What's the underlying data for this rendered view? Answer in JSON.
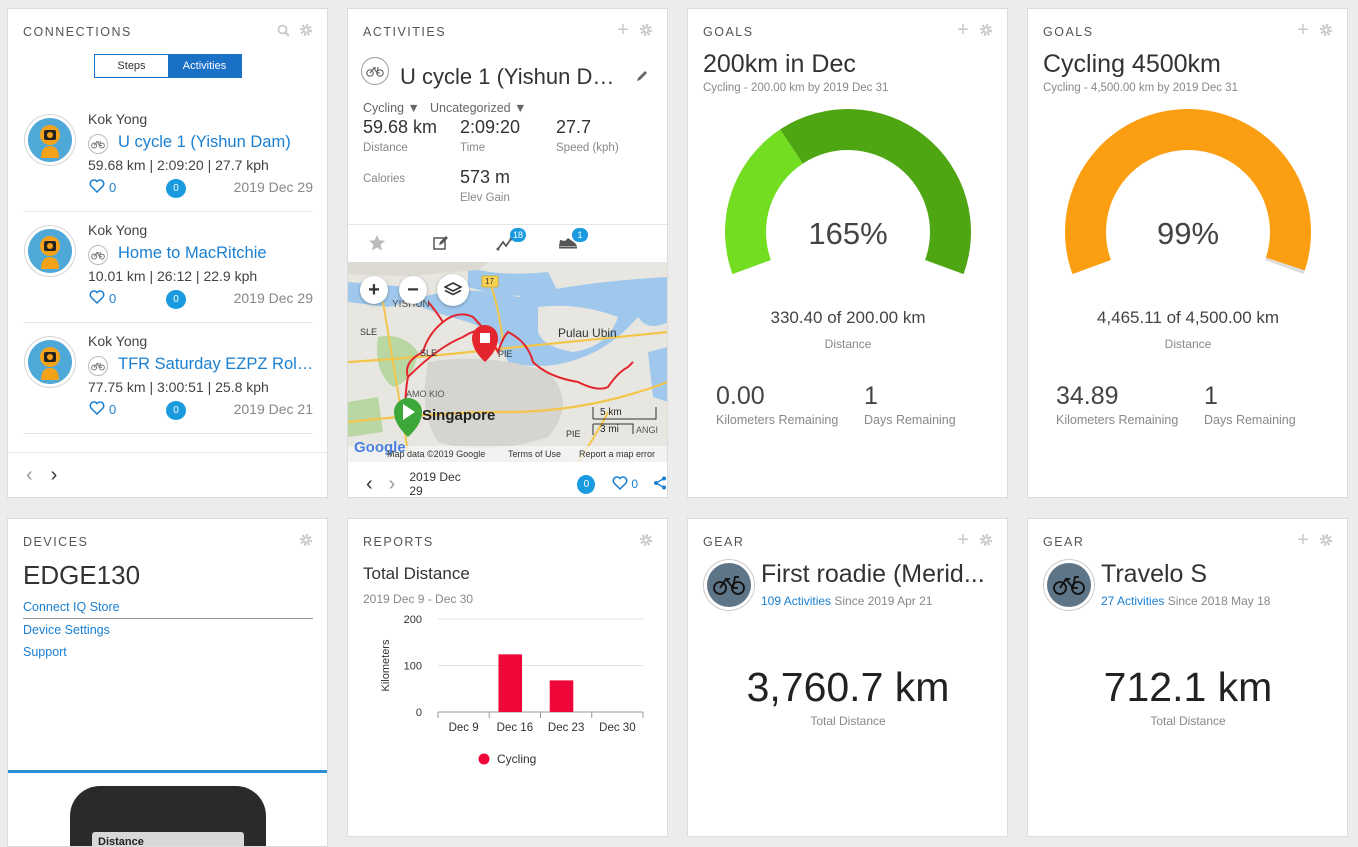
{
  "connections": {
    "title": "Connections",
    "toggle": {
      "steps": "Steps",
      "activities": "Activities"
    },
    "items": [
      {
        "user": "Kok Yong",
        "name": "U cycle 1 (Yishun Dam)",
        "stats": "59.68 km | 2:09:20 | 27.7 kph",
        "likes": "0",
        "comments": "0",
        "date": "2019 Dec 29"
      },
      {
        "user": "Kok Yong",
        "name": "Home to MacRitchie",
        "stats": "10.01 km | 26:12 | 22.9 kph",
        "likes": "0",
        "comments": "0",
        "date": "2019 Dec 29"
      },
      {
        "user": "Kok Yong",
        "name": "TFR Saturday EZPZ Roll t...",
        "stats": "77.75 km | 3:00:51 | 25.8 kph",
        "likes": "0",
        "comments": "0",
        "date": "2019 Dec 21"
      }
    ],
    "prev": "‹",
    "next": "›"
  },
  "activities": {
    "title": "Activities",
    "name": "U cycle 1 (Yishun Da...",
    "type": "Cycling ▼",
    "category": "Uncategorized ▼",
    "stats": [
      {
        "value": "59.68 km",
        "label": "Distance"
      },
      {
        "value": "2:09:20",
        "label": "Time"
      },
      {
        "value": "27.7",
        "label": "Speed (kph)"
      },
      {
        "value": "",
        "label": "Calories"
      },
      {
        "value": "573 m",
        "label": "Elev Gain"
      }
    ],
    "tab_badges": {
      "segments": "18",
      "gear": "1"
    },
    "map": {
      "labels": {
        "yishun": "YISHUN",
        "ubin": "Pulau Ubin",
        "singapore": "Singapore",
        "amk": "AMO KIO",
        "sle1": "SLE",
        "sle2": "SLE",
        "pie1": "PIE",
        "pie2": "PIE",
        "changi": "ANGI",
        "route17": "17"
      },
      "scale_km": "5 km",
      "scale_mi": "3 mi",
      "attribution": "Map data ©2019 Google",
      "terms": "Terms of Use",
      "report": "Report a map error",
      "google": "Google",
      "zoom_in": "+",
      "zoom_out": "−"
    },
    "date": "2019 Dec 29",
    "comments": "0",
    "likes": "0"
  },
  "goal1": {
    "title": "Goals",
    "name": "200km in Dec",
    "sub": "Cycling - 200.00 km by 2019 Dec 31",
    "percent": "165%",
    "progress": "330.40 of 200.00 km",
    "progress_label": "Distance",
    "remaining_km": "0.00",
    "remaining_km_label": "Kilometers Remaining",
    "remaining_days": "1",
    "remaining_days_label": "Days Remaining",
    "fill_fraction": 1.652,
    "color_main": "#73dd22",
    "color_over": "#4ea613"
  },
  "goal2": {
    "title": "Goals",
    "name": "Cycling 4500km",
    "sub": "Cycling - 4,500.00 km by 2019 Dec 31",
    "percent": "99%",
    "progress": "4,465.11 of 4,500.00 km",
    "progress_label": "Distance",
    "remaining_km": "34.89",
    "remaining_km_label": "Kilometers Remaining",
    "remaining_days": "1",
    "remaining_days_label": "Days Remaining",
    "fill_fraction": 0.992,
    "color_main": "#fb9e11"
  },
  "devices": {
    "title": "Devices",
    "name": "EDGE130",
    "links": [
      "Connect IQ Store",
      "Device Settings",
      "Support"
    ],
    "screen_text": "Distance"
  },
  "reports": {
    "title": "Reports",
    "chart_title": "Total Distance",
    "range": "2019 Dec 9 - Dec 30"
  },
  "chart_data": {
    "type": "bar",
    "title": "Total Distance",
    "subtitle": "2019 Dec 9 - Dec 30",
    "categories": [
      "Dec 9",
      "Dec 16",
      "Dec 23",
      "Dec 30"
    ],
    "series": [
      {
        "name": "Cycling",
        "values": [
          0,
          124,
          68,
          0
        ]
      }
    ],
    "ylabel": "Kilometers",
    "xlabel": "",
    "ylim": [
      0,
      200
    ],
    "yticks": [
      0,
      100,
      200
    ],
    "color": "#f0073a",
    "legend": "bottom",
    "grid": true
  },
  "gear1": {
    "title": "Gear",
    "name": "First roadie (Merid...",
    "activities": "109 Activities",
    "since": " Since 2019 Apr 21",
    "total": "3,760.7 km",
    "total_label": "Total Distance"
  },
  "gear2": {
    "title": "Gear",
    "name": "Travelo S",
    "activities": "27 Activities",
    "since": " Since 2018 May 18",
    "total": "712.1 km",
    "total_label": "Total Distance"
  }
}
